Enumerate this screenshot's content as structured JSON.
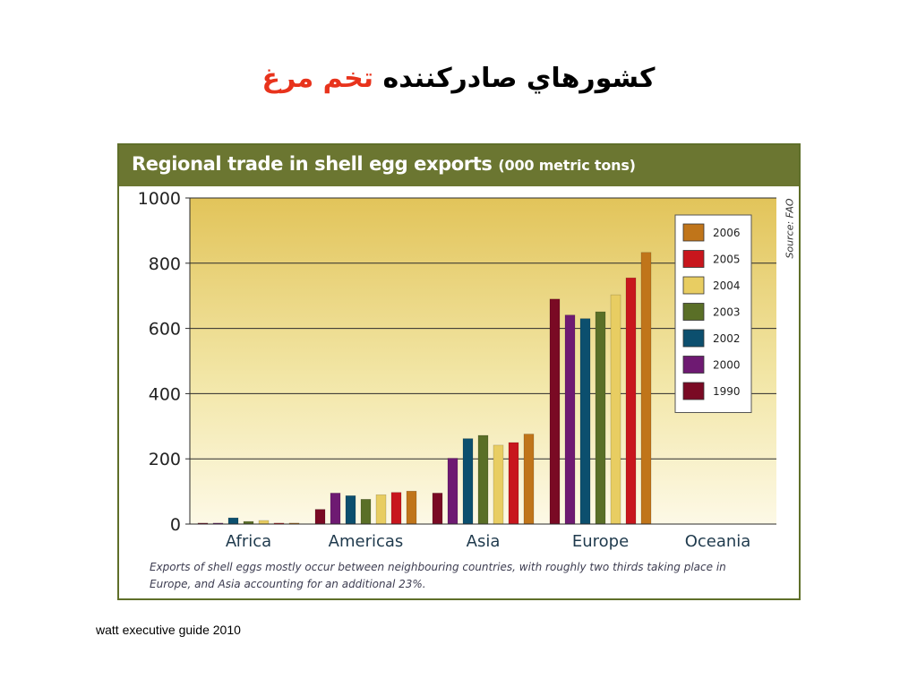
{
  "slide": {
    "title_main": "کشورهاي صادرکننده",
    "title_highlight": "تخم مرغ",
    "footer": "watt executive guide 2010"
  },
  "figure": {
    "header_main": "Regional trade in shell egg exports",
    "header_unit": "(000 metric tons)",
    "source": "Source: FAO",
    "caption": "Exports of shell eggs mostly occur between neighbouring countries, with roughly two thirds taking place in Europe, and Asia accounting for an additional 23%."
  },
  "chart_data": {
    "type": "bar",
    "title": "Regional trade in shell egg exports (000 metric tons)",
    "categories": [
      "Africa",
      "Americas",
      "Asia",
      "Europe",
      "Oceania"
    ],
    "ylim": [
      0,
      1000
    ],
    "yticks": [
      0,
      200,
      400,
      600,
      800,
      1000
    ],
    "grid": true,
    "legend_position": "top-right",
    "series": [
      {
        "name": "1990",
        "color": "#7a0a24",
        "values": [
          3,
          45,
          95,
          690,
          0
        ]
      },
      {
        "name": "2000",
        "color": "#6e1a72",
        "values": [
          3,
          95,
          202,
          641,
          0
        ]
      },
      {
        "name": "2002",
        "color": "#0c4f6e",
        "values": [
          19,
          87,
          262,
          630,
          0
        ]
      },
      {
        "name": "2003",
        "color": "#5a6f27",
        "values": [
          8,
          76,
          272,
          651,
          0
        ]
      },
      {
        "name": "2004",
        "color": "#e8cd62",
        "values": [
          11,
          90,
          242,
          703,
          0
        ]
      },
      {
        "name": "2005",
        "color": "#c8161d",
        "values": [
          3,
          97,
          250,
          755,
          0
        ]
      },
      {
        "name": "2006",
        "color": "#c0751a",
        "values": [
          3,
          101,
          276,
          833,
          0
        ]
      }
    ]
  }
}
